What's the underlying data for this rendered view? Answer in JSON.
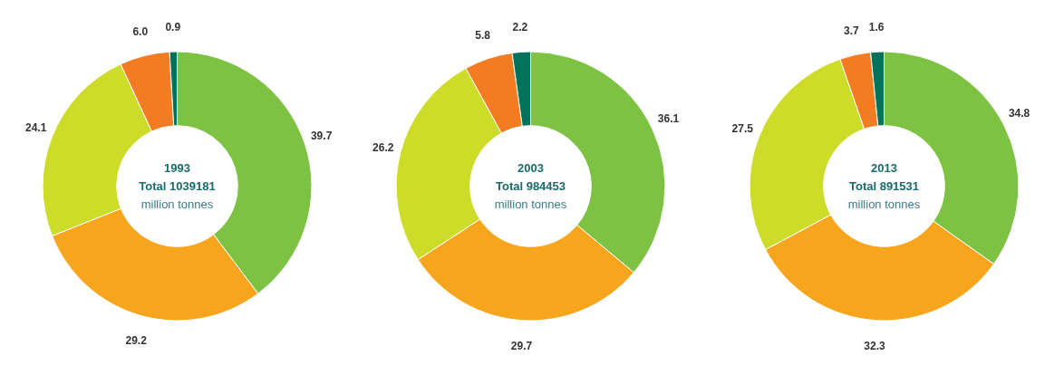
{
  "chart_data": [
    {
      "type": "donut",
      "title": "1993",
      "subtitle": "Total 1039181",
      "annotations": [
        "million tonnes"
      ],
      "categories": [
        null,
        null,
        null,
        null,
        null
      ],
      "values": [
        39.7,
        29.2,
        24.1,
        6.0,
        0.9
      ],
      "value_labels": [
        "39.7",
        "29.2",
        "24.1",
        "6.0",
        "0.9"
      ],
      "colors": [
        "#7dc242",
        "#f7a51d",
        "#cddc29",
        "#f37b21",
        "#00735a"
      ]
    },
    {
      "type": "donut",
      "title": "2003",
      "subtitle": "Total 984453",
      "annotations": [
        "million tonnes"
      ],
      "categories": [
        null,
        null,
        null,
        null,
        null
      ],
      "values": [
        36.1,
        29.7,
        26.2,
        5.8,
        2.2
      ],
      "value_labels": [
        "36.1",
        "29.7",
        "26.2",
        "5.8",
        "2.2"
      ],
      "colors": [
        "#7dc242",
        "#f7a51d",
        "#cddc29",
        "#f37b21",
        "#00735a"
      ]
    },
    {
      "type": "donut",
      "title": "2013",
      "subtitle": "Total 891531",
      "annotations": [
        "million tonnes"
      ],
      "categories": [
        null,
        null,
        null,
        null,
        null
      ],
      "values": [
        34.8,
        32.3,
        27.5,
        3.7,
        1.6
      ],
      "value_labels": [
        "34.8",
        "32.3",
        "27.5",
        "3.7",
        "1.6"
      ],
      "colors": [
        "#7dc242",
        "#f7a51d",
        "#cddc29",
        "#f37b21",
        "#00735a"
      ]
    }
  ]
}
